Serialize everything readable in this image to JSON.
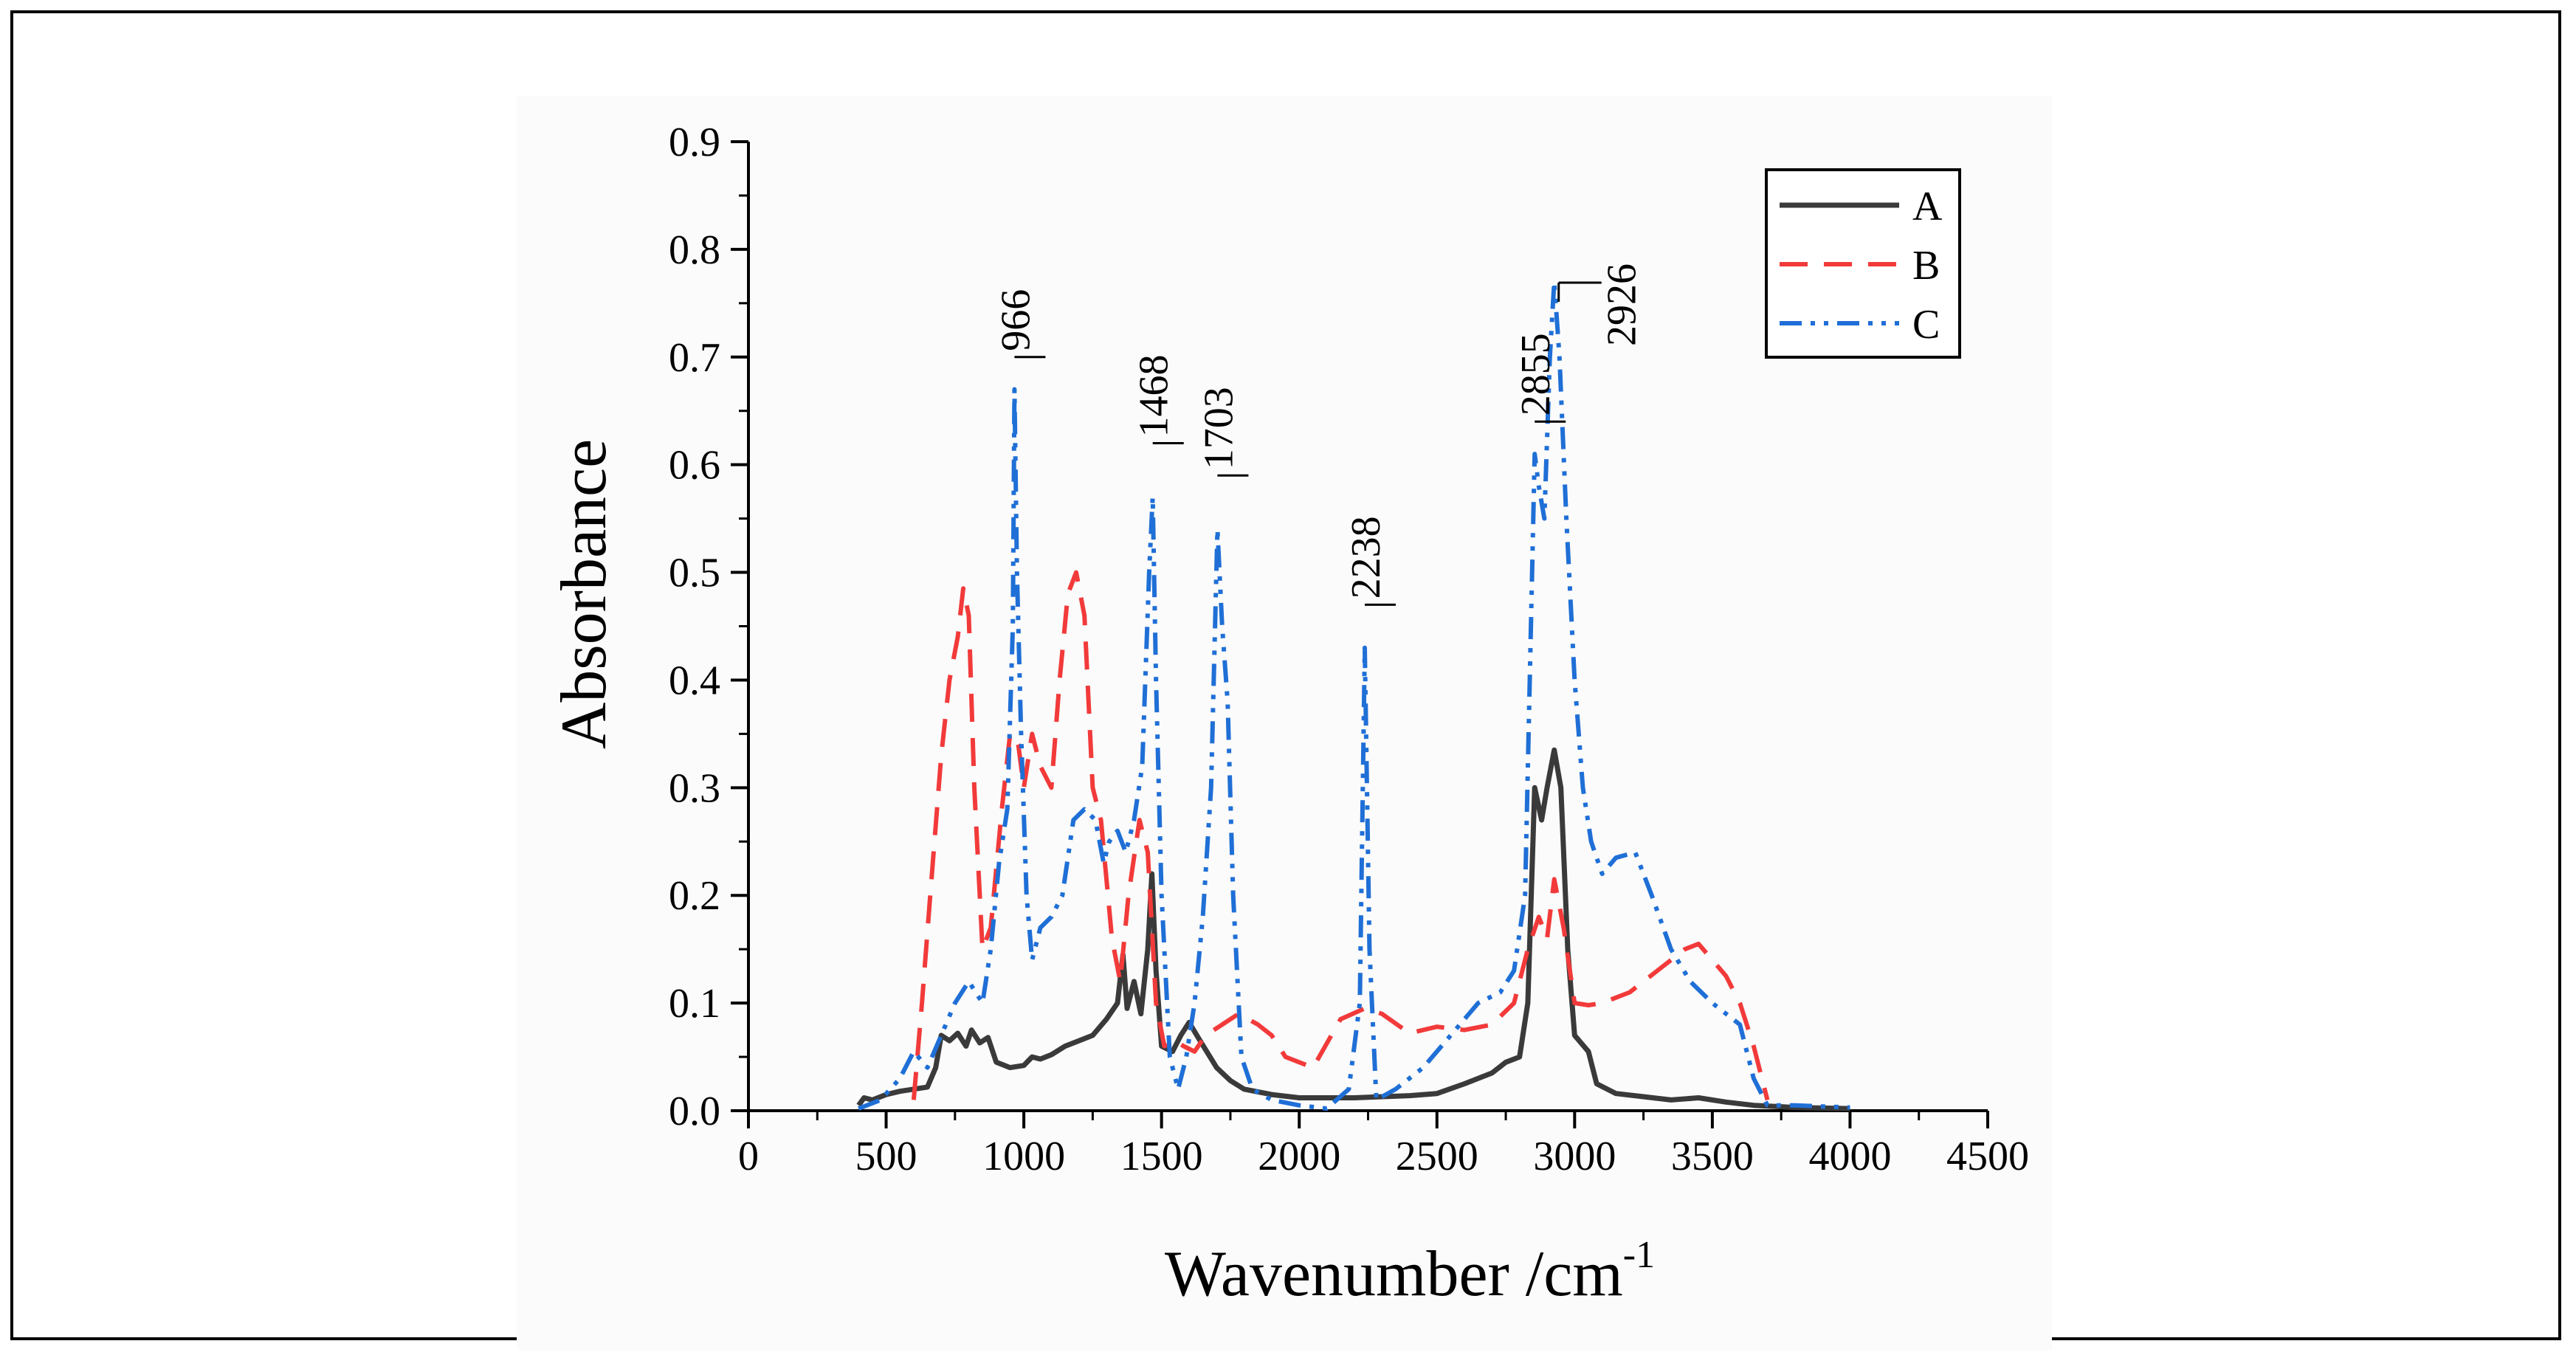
{
  "chart_data": {
    "type": "line",
    "xlabel": "Wavenumber /cm",
    "xlabel_sup": "-1",
    "ylabel": "Absorbance",
    "xlim": [
      0,
      4500
    ],
    "ylim": [
      0,
      0.9
    ],
    "x_ticks": [
      "0",
      "500",
      "1000",
      "1500",
      "2000",
      "2500",
      "3000",
      "3500",
      "4000",
      "4500"
    ],
    "y_ticks": [
      "0.0",
      "0.1",
      "0.2",
      "0.3",
      "0.4",
      "0.5",
      "0.6",
      "0.7",
      "0.8",
      "0.9"
    ],
    "grid": false,
    "legend_position": "top-right",
    "series": [
      {
        "name": "A",
        "color": "#3a3a3a",
        "dash": "solid",
        "points": [
          [
            400,
            0.005
          ],
          [
            420,
            0.012
          ],
          [
            450,
            0.01
          ],
          [
            500,
            0.015
          ],
          [
            550,
            0.018
          ],
          [
            600,
            0.02
          ],
          [
            650,
            0.022
          ],
          [
            680,
            0.04
          ],
          [
            700,
            0.07
          ],
          [
            730,
            0.065
          ],
          [
            760,
            0.072
          ],
          [
            790,
            0.06
          ],
          [
            810,
            0.075
          ],
          [
            840,
            0.063
          ],
          [
            870,
            0.068
          ],
          [
            900,
            0.045
          ],
          [
            950,
            0.04
          ],
          [
            1000,
            0.042
          ],
          [
            1030,
            0.05
          ],
          [
            1060,
            0.048
          ],
          [
            1100,
            0.052
          ],
          [
            1150,
            0.06
          ],
          [
            1200,
            0.065
          ],
          [
            1250,
            0.07
          ],
          [
            1300,
            0.085
          ],
          [
            1340,
            0.1
          ],
          [
            1360,
            0.145
          ],
          [
            1375,
            0.095
          ],
          [
            1400,
            0.12
          ],
          [
            1425,
            0.09
          ],
          [
            1450,
            0.15
          ],
          [
            1465,
            0.22
          ],
          [
            1480,
            0.13
          ],
          [
            1500,
            0.06
          ],
          [
            1540,
            0.055
          ],
          [
            1570,
            0.07
          ],
          [
            1600,
            0.082
          ],
          [
            1640,
            0.065
          ],
          [
            1700,
            0.04
          ],
          [
            1750,
            0.028
          ],
          [
            1800,
            0.02
          ],
          [
            1900,
            0.015
          ],
          [
            2000,
            0.012
          ],
          [
            2100,
            0.012
          ],
          [
            2200,
            0.012
          ],
          [
            2300,
            0.013
          ],
          [
            2400,
            0.014
          ],
          [
            2500,
            0.016
          ],
          [
            2600,
            0.025
          ],
          [
            2700,
            0.035
          ],
          [
            2750,
            0.045
          ],
          [
            2800,
            0.05
          ],
          [
            2830,
            0.1
          ],
          [
            2855,
            0.3
          ],
          [
            2880,
            0.27
          ],
          [
            2900,
            0.3
          ],
          [
            2926,
            0.335
          ],
          [
            2950,
            0.3
          ],
          [
            2975,
            0.15
          ],
          [
            3000,
            0.07
          ],
          [
            3050,
            0.055
          ],
          [
            3080,
            0.025
          ],
          [
            3150,
            0.016
          ],
          [
            3250,
            0.013
          ],
          [
            3350,
            0.01
          ],
          [
            3450,
            0.012
          ],
          [
            3550,
            0.008
          ],
          [
            3650,
            0.005
          ],
          [
            3800,
            0.003
          ],
          [
            4000,
            0.002
          ]
        ]
      },
      {
        "name": "B",
        "color": "#f23a3a",
        "dash": "dashed",
        "points": [
          [
            600,
            0.01
          ],
          [
            630,
            0.1
          ],
          [
            660,
            0.2
          ],
          [
            700,
            0.33
          ],
          [
            730,
            0.4
          ],
          [
            760,
            0.44
          ],
          [
            780,
            0.485
          ],
          [
            800,
            0.46
          ],
          [
            820,
            0.3
          ],
          [
            850,
            0.15
          ],
          [
            880,
            0.17
          ],
          [
            920,
            0.28
          ],
          [
            950,
            0.35
          ],
          [
            980,
            0.34
          ],
          [
            1000,
            0.3
          ],
          [
            1030,
            0.35
          ],
          [
            1060,
            0.32
          ],
          [
            1100,
            0.3
          ],
          [
            1130,
            0.4
          ],
          [
            1160,
            0.48
          ],
          [
            1190,
            0.5
          ],
          [
            1220,
            0.46
          ],
          [
            1250,
            0.3
          ],
          [
            1280,
            0.27
          ],
          [
            1320,
            0.16
          ],
          [
            1350,
            0.12
          ],
          [
            1380,
            0.2
          ],
          [
            1420,
            0.27
          ],
          [
            1450,
            0.24
          ],
          [
            1480,
            0.1
          ],
          [
            1510,
            0.06
          ],
          [
            1550,
            0.065
          ],
          [
            1580,
            0.06
          ],
          [
            1620,
            0.055
          ],
          [
            1660,
            0.07
          ],
          [
            1720,
            0.08
          ],
          [
            1780,
            0.09
          ],
          [
            1850,
            0.08
          ],
          [
            1900,
            0.07
          ],
          [
            1950,
            0.05
          ],
          [
            2050,
            0.04
          ],
          [
            2150,
            0.085
          ],
          [
            2238,
            0.095
          ],
          [
            2300,
            0.09
          ],
          [
            2400,
            0.072
          ],
          [
            2500,
            0.078
          ],
          [
            2600,
            0.075
          ],
          [
            2700,
            0.08
          ],
          [
            2780,
            0.1
          ],
          [
            2830,
            0.15
          ],
          [
            2870,
            0.18
          ],
          [
            2900,
            0.16
          ],
          [
            2926,
            0.215
          ],
          [
            2960,
            0.17
          ],
          [
            3000,
            0.1
          ],
          [
            3050,
            0.098
          ],
          [
            3100,
            0.1
          ],
          [
            3200,
            0.11
          ],
          [
            3300,
            0.13
          ],
          [
            3400,
            0.15
          ],
          [
            3450,
            0.155
          ],
          [
            3500,
            0.14
          ],
          [
            3550,
            0.125
          ],
          [
            3600,
            0.1
          ],
          [
            3650,
            0.06
          ],
          [
            3700,
            0.01
          ]
        ]
      },
      {
        "name": "C",
        "color": "#1f6fd6",
        "dash": "dashdotdot",
        "points": [
          [
            400,
            0.002
          ],
          [
            480,
            0.01
          ],
          [
            550,
            0.03
          ],
          [
            600,
            0.055
          ],
          [
            650,
            0.04
          ],
          [
            700,
            0.07
          ],
          [
            750,
            0.1
          ],
          [
            800,
            0.12
          ],
          [
            850,
            0.1
          ],
          [
            880,
            0.15
          ],
          [
            910,
            0.23
          ],
          [
            940,
            0.28
          ],
          [
            960,
            0.45
          ],
          [
            966,
            0.67
          ],
          [
            975,
            0.5
          ],
          [
            990,
            0.35
          ],
          [
            1010,
            0.2
          ],
          [
            1030,
            0.14
          ],
          [
            1060,
            0.17
          ],
          [
            1100,
            0.18
          ],
          [
            1140,
            0.2
          ],
          [
            1180,
            0.27
          ],
          [
            1220,
            0.28
          ],
          [
            1260,
            0.27
          ],
          [
            1290,
            0.23
          ],
          [
            1310,
            0.25
          ],
          [
            1340,
            0.26
          ],
          [
            1370,
            0.24
          ],
          [
            1400,
            0.27
          ],
          [
            1430,
            0.32
          ],
          [
            1455,
            0.5
          ],
          [
            1468,
            0.57
          ],
          [
            1480,
            0.4
          ],
          [
            1500,
            0.2
          ],
          [
            1530,
            0.05
          ],
          [
            1560,
            0.02
          ],
          [
            1590,
            0.05
          ],
          [
            1620,
            0.1
          ],
          [
            1650,
            0.18
          ],
          [
            1680,
            0.3
          ],
          [
            1703,
            0.54
          ],
          [
            1720,
            0.45
          ],
          [
            1740,
            0.38
          ],
          [
            1760,
            0.2
          ],
          [
            1790,
            0.05
          ],
          [
            1830,
            0.02
          ],
          [
            1900,
            0.01
          ],
          [
            2000,
            0.005
          ],
          [
            2100,
            0.002
          ],
          [
            2180,
            0.02
          ],
          [
            2220,
            0.1
          ],
          [
            2238,
            0.43
          ],
          [
            2255,
            0.15
          ],
          [
            2280,
            0.01
          ],
          [
            2350,
            0.02
          ],
          [
            2450,
            0.04
          ],
          [
            2550,
            0.07
          ],
          [
            2650,
            0.1
          ],
          [
            2730,
            0.11
          ],
          [
            2780,
            0.13
          ],
          [
            2820,
            0.2
          ],
          [
            2855,
            0.61
          ],
          [
            2870,
            0.58
          ],
          [
            2890,
            0.55
          ],
          [
            2910,
            0.7
          ],
          [
            2926,
            0.77
          ],
          [
            2945,
            0.7
          ],
          [
            2970,
            0.55
          ],
          [
            3000,
            0.4
          ],
          [
            3030,
            0.3
          ],
          [
            3060,
            0.25
          ],
          [
            3100,
            0.22
          ],
          [
            3150,
            0.235
          ],
          [
            3220,
            0.24
          ],
          [
            3280,
            0.2
          ],
          [
            3350,
            0.15
          ],
          [
            3420,
            0.12
          ],
          [
            3500,
            0.1
          ],
          [
            3550,
            0.09
          ],
          [
            3600,
            0.08
          ],
          [
            3650,
            0.03
          ],
          [
            3700,
            0.005
          ],
          [
            3800,
            0.005
          ],
          [
            3900,
            0.004
          ],
          [
            4000,
            0.003
          ]
        ]
      }
    ],
    "annotations": [
      {
        "label": "966",
        "x": 966,
        "y_top": 0.7,
        "color": "#000000"
      },
      {
        "label": "1468",
        "x": 1468,
        "y_top": 0.62,
        "color": "#000000"
      },
      {
        "label": "1703",
        "x": 1703,
        "y_top": 0.59,
        "color": "#000000"
      },
      {
        "label": "2238",
        "x": 2238,
        "y_top": 0.47,
        "color": "#f23a3a"
      },
      {
        "label": "2855",
        "x": 2855,
        "y_top": 0.64,
        "color": "#000000"
      },
      {
        "label": "2926",
        "x": 2926,
        "y_top": 0.765,
        "color": "#000000"
      }
    ]
  }
}
